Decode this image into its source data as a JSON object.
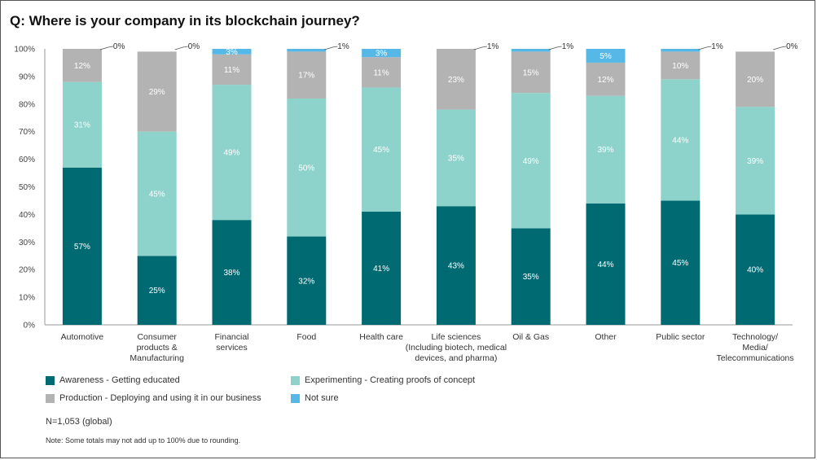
{
  "colors": {
    "awareness": "#006a72",
    "experimenting": "#8dd3cb",
    "production": "#b3b3b3",
    "not_sure": "#55b8e7",
    "axis": "#999999",
    "grid_text": "#444444"
  },
  "chart_data": {
    "type": "bar",
    "stacked": true,
    "title": "Q: Where is your company in its blockchain journey?",
    "xlabel": "",
    "ylabel": "",
    "ylim": [
      0,
      100
    ],
    "y_ticks": [
      "0%",
      "10%",
      "20%",
      "30%",
      "40%",
      "50%",
      "60%",
      "70%",
      "80%",
      "90%",
      "100%"
    ],
    "categories": [
      [
        "Automotive"
      ],
      [
        "Consumer",
        "products &",
        "Manufacturing"
      ],
      [
        "Financial",
        "services"
      ],
      [
        "Food"
      ],
      [
        "Health care"
      ],
      [
        "Life sciences",
        "(Including biotech, medical",
        "devices, and pharma)"
      ],
      [
        "Oil & Gas"
      ],
      [
        "Other"
      ],
      [
        "Public sector"
      ],
      [
        "Technology/",
        "Media/",
        "Telecommunications"
      ]
    ],
    "series": [
      {
        "name": "Awareness - Getting educated",
        "key": "awareness",
        "values": [
          57,
          25,
          38,
          32,
          41,
          43,
          35,
          44,
          45,
          40
        ]
      },
      {
        "name": "Experimenting - Creating proofs of concept",
        "key": "experimenting",
        "values": [
          31,
          45,
          49,
          50,
          45,
          35,
          49,
          39,
          44,
          39
        ]
      },
      {
        "name": "Production - Deploying and using it in our business",
        "key": "production",
        "values": [
          12,
          29,
          11,
          17,
          11,
          23,
          15,
          12,
          10,
          20
        ]
      },
      {
        "name": "Not sure",
        "key": "not_sure",
        "values": [
          0,
          0,
          3,
          1,
          3,
          1,
          1,
          5,
          1,
          0
        ]
      }
    ],
    "value_labels": {
      "awareness": [
        "57%",
        "25%",
        "38%",
        "32%",
        "41%",
        "43%",
        "35%",
        "44%",
        "45%",
        "40%"
      ],
      "experimenting": [
        "31%",
        "45%",
        "49%",
        "50%",
        "45%",
        "35%",
        "49%",
        "39%",
        "44%",
        "39%"
      ],
      "production": [
        "12%",
        "29%",
        "11%",
        "17%",
        "11%",
        "23%",
        "15%",
        "12%",
        "10%",
        "20%"
      ],
      "not_sure": [
        "0%",
        "0%",
        "3%",
        "1%",
        "3%",
        "1%",
        "1%",
        "5%",
        "1%",
        "0%"
      ]
    },
    "legend_position": "bottom-left"
  },
  "legend": {
    "awareness": "Awareness - Getting educated",
    "experimenting": "Experimenting - Creating proofs of concept",
    "production": "Production - Deploying and using it in our business",
    "not_sure": "Not sure"
  },
  "sample_size": "N=1,053 (global)",
  "footnote": "Note: Some totals may not add up to 100% due to rounding."
}
